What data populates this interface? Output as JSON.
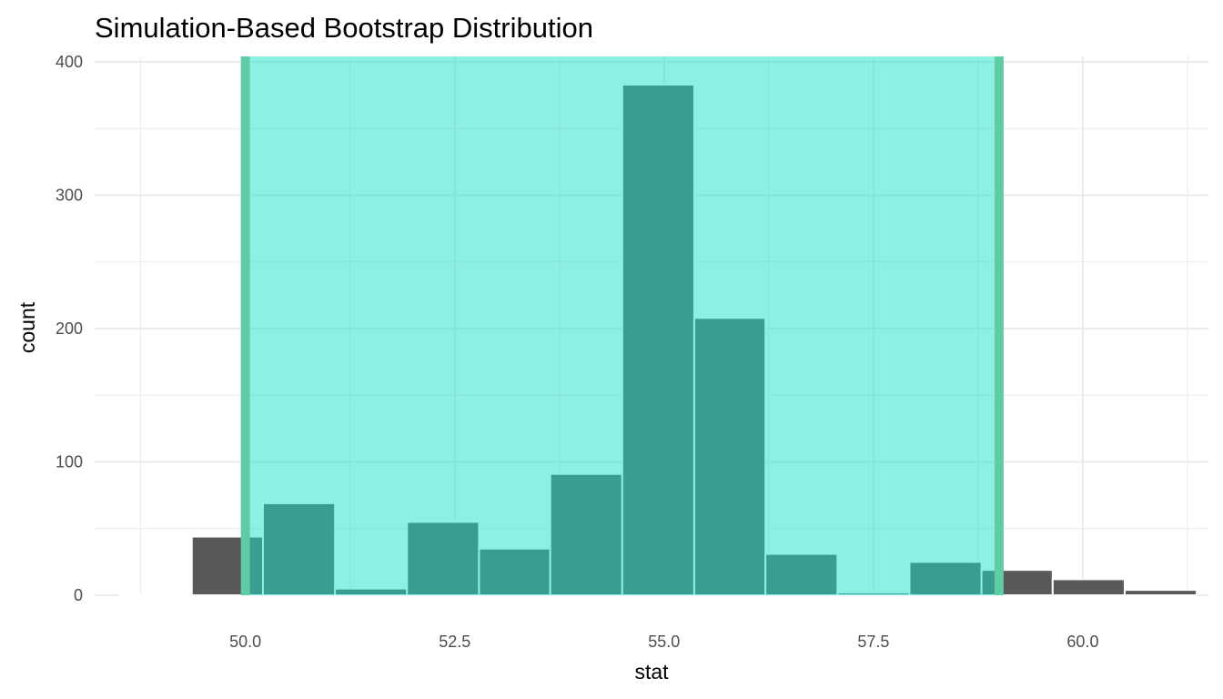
{
  "chart_data": {
    "type": "histogram",
    "title": "Simulation-Based Bootstrap Distribution",
    "xlabel": "stat",
    "ylabel": "count",
    "xlim": [
      48.2,
      61.5
    ],
    "ylim": [
      0,
      400
    ],
    "x_ticks": [
      50.0,
      52.5,
      55.0,
      57.5,
      60.0
    ],
    "x_tick_labels": [
      "50.0",
      "52.5",
      "55.0",
      "57.5",
      "60.0"
    ],
    "y_ticks": [
      0,
      100,
      200,
      300,
      400
    ],
    "y_tick_labels": [
      "0",
      "100",
      "200",
      "300",
      "400"
    ],
    "grid": true,
    "bins": [
      {
        "x0": 48.5,
        "x1": 49.36,
        "count": 1
      },
      {
        "x0": 49.36,
        "x1": 50.21,
        "count": 44
      },
      {
        "x0": 50.21,
        "x1": 51.07,
        "count": 69
      },
      {
        "x0": 51.07,
        "x1": 51.93,
        "count": 5
      },
      {
        "x0": 51.93,
        "x1": 52.79,
        "count": 55
      },
      {
        "x0": 52.79,
        "x1": 53.64,
        "count": 35
      },
      {
        "x0": 53.64,
        "x1": 54.5,
        "count": 91
      },
      {
        "x0": 54.5,
        "x1": 55.36,
        "count": 383
      },
      {
        "x0": 55.36,
        "x1": 56.21,
        "count": 208
      },
      {
        "x0": 56.21,
        "x1": 57.07,
        "count": 31
      },
      {
        "x0": 57.07,
        "x1": 57.93,
        "count": 2
      },
      {
        "x0": 57.93,
        "x1": 58.79,
        "count": 25
      },
      {
        "x0": 58.79,
        "x1": 59.64,
        "count": 19
      },
      {
        "x0": 59.64,
        "x1": 60.5,
        "count": 12
      },
      {
        "x0": 60.5,
        "x1": 61.36,
        "count": 4
      }
    ],
    "ci": {
      "lower": 50.0,
      "upper": 59.0
    },
    "colors": {
      "bar": "#595959",
      "bar_edge": "#ffffff",
      "ci_fill": "#1de0c8",
      "ci_fill_opacity": 0.5,
      "ci_line": "#5ecca5",
      "grid": "#ebebeb",
      "tick_text": "#4d4d4d"
    }
  }
}
